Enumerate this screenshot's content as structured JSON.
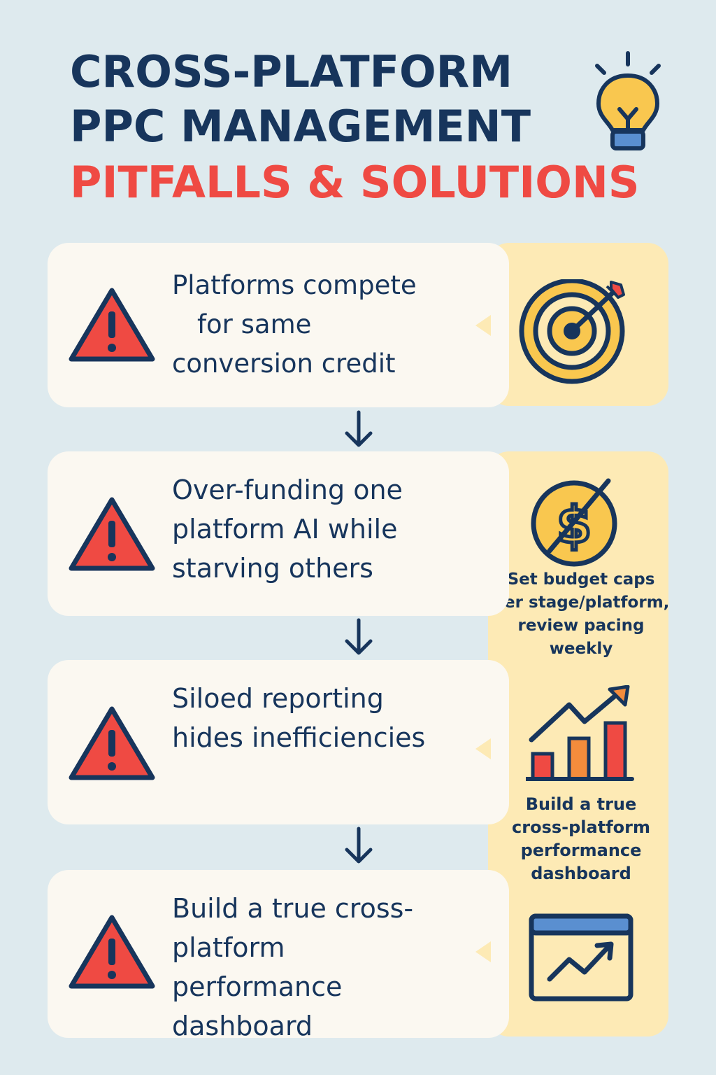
{
  "header": {
    "title_line1": "CROSS-PLATFORM",
    "title_line2": "PPC MANAGEMENT",
    "subtitle": "PITFALLS & SOLUTIONS"
  },
  "pitfalls": [
    {
      "lines": [
        "Platforms compete",
        "for same",
        "conversion credit"
      ]
    },
    {
      "lines": [
        "Over-funding one",
        "platform AI while",
        "starving others"
      ]
    },
    {
      "lines": [
        "Siloed reporting",
        "hides inefficiencies"
      ]
    },
    {
      "lines": [
        "Build a true cross-",
        "platform",
        "performance",
        "dashboard"
      ]
    }
  ],
  "solutions": {
    "budget": {
      "lines": [
        "Set budget caps",
        "per stage/platform,",
        "review pacing",
        "weekly"
      ]
    },
    "dashboard": {
      "lines": [
        "Build a true",
        "cross-platform",
        "performance",
        "dashboard"
      ]
    }
  },
  "icons": [
    "lightbulb-icon",
    "warning-icon",
    "target-icon",
    "no-dollar-icon",
    "bar-chart-icon",
    "dashboard-icon",
    "down-arrow-icon"
  ],
  "colors": {
    "background": "#deeaee",
    "navy": "#17355c",
    "accent_red": "#ef4a43",
    "card": "#fbf8f1",
    "solution_panel": "#fdeab5",
    "icon_yellow": "#f9c74f",
    "icon_orange": "#f48c3c"
  }
}
